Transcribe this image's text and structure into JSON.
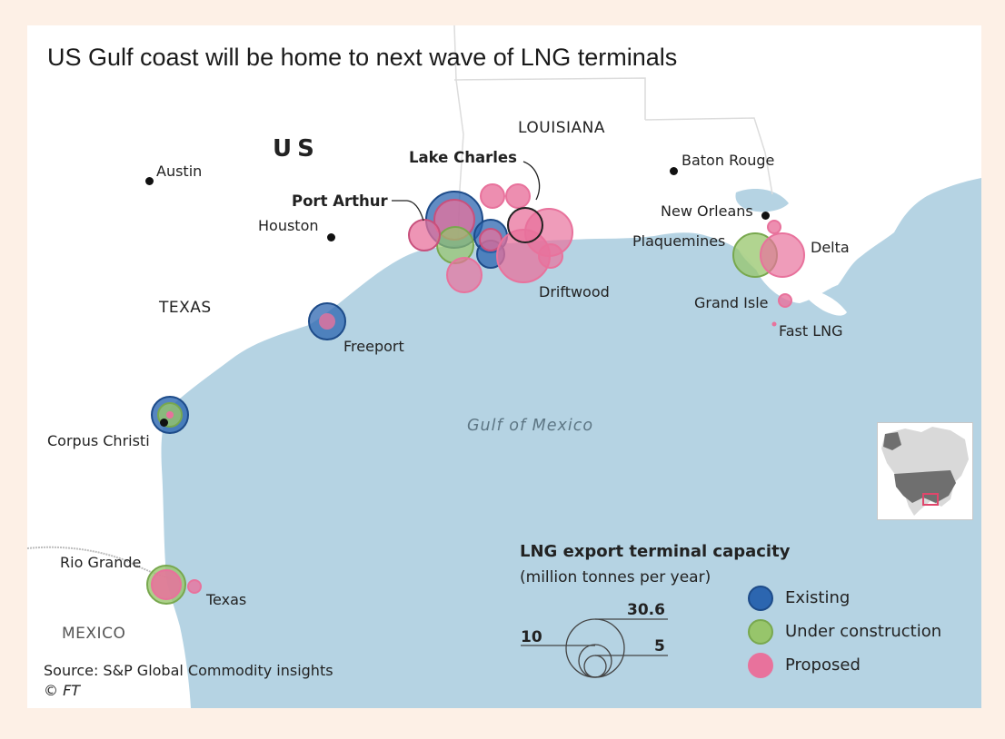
{
  "title": "US Gulf coast will be home to next wave of LNG terminals",
  "colors": {
    "background": "#fdf0e6",
    "sea": "#b5d3e3",
    "land": "#ffffff",
    "existing": "#2c66b0",
    "under_construction": "#97c56b",
    "proposed": "#e8729c"
  },
  "labels": {
    "country_us": "US",
    "state_louisiana": "LOUISIANA",
    "state_texas": "TEXAS",
    "country_mexico": "MEXICO",
    "sea": "Gulf of Mexico",
    "cities": {
      "austin": "Austin",
      "houston": "Houston",
      "baton_rouge": "Baton Rouge",
      "new_orleans": "New Orleans",
      "corpus_christi": "Corpus Christi"
    },
    "terminals": {
      "port_arthur": "Port Arthur",
      "lake_charles": "Lake Charles",
      "plaquemines": "Plaquemines",
      "delta": "Delta",
      "driftwood": "Driftwood",
      "grand_isle": "Grand Isle",
      "fast_lng": "Fast LNG",
      "freeport": "Freeport",
      "rio_grande": "Rio Grande",
      "texas": "Texas"
    }
  },
  "legend": {
    "title": "LNG export terminal capacity",
    "subtitle": "(million tonnes per year)",
    "scale_values": [
      "30.6",
      "10",
      "5"
    ],
    "items": [
      {
        "label": "Existing",
        "icon": "existing-circle"
      },
      {
        "label": "Under construction",
        "icon": "under-construction-circle"
      },
      {
        "label": "Proposed",
        "icon": "proposed-circle"
      }
    ]
  },
  "source": "Source: S&P Global Commodity insights",
  "copyright_prefix": "©",
  "copyright_brand": "FT"
}
